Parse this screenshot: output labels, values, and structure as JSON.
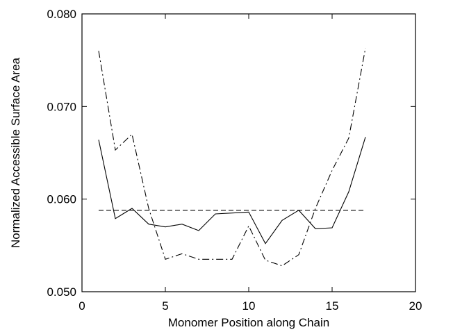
{
  "chart_data": {
    "type": "line",
    "title": "",
    "xlabel": "Monomer Position along Chain",
    "ylabel": "Normalized Accessible Surface Area",
    "xlim": [
      0,
      20
    ],
    "ylim": [
      0.05,
      0.08
    ],
    "xticks": [
      0,
      5,
      10,
      15,
      20
    ],
    "yticks": [
      0.05,
      0.06,
      0.07,
      0.08
    ],
    "xtick_labels": [
      "0",
      "5",
      "10",
      "15",
      "20"
    ],
    "ytick_labels": [
      "0.050",
      "0.060",
      "0.070",
      "0.080"
    ],
    "grid": false,
    "legend": "none",
    "series": [
      {
        "line_style": "solid",
        "x": [
          1,
          2,
          3,
          4,
          5,
          6,
          7,
          8,
          9,
          10,
          11,
          12,
          13,
          14,
          15,
          16,
          17
        ],
        "y": [
          0.0664,
          0.0579,
          0.059,
          0.0573,
          0.057,
          0.0573,
          0.0566,
          0.0584,
          0.0585,
          0.0586,
          0.0552,
          0.0577,
          0.0588,
          0.0568,
          0.0569,
          0.0608,
          0.0667
        ]
      },
      {
        "line_style": "dashdot",
        "x": [
          1,
          2,
          3,
          4,
          5,
          6,
          7,
          8,
          9,
          10,
          11,
          12,
          13,
          14,
          15,
          16,
          17
        ],
        "y": [
          0.076,
          0.0653,
          0.067,
          0.059,
          0.0535,
          0.0541,
          0.0535,
          0.0535,
          0.0535,
          0.0571,
          0.0534,
          0.0528,
          0.054,
          0.059,
          0.0631,
          0.0666,
          0.0763
        ]
      },
      {
        "line_style": "dashed",
        "x": [
          1,
          17
        ],
        "y": [
          0.0588,
          0.0588
        ]
      }
    ]
  }
}
